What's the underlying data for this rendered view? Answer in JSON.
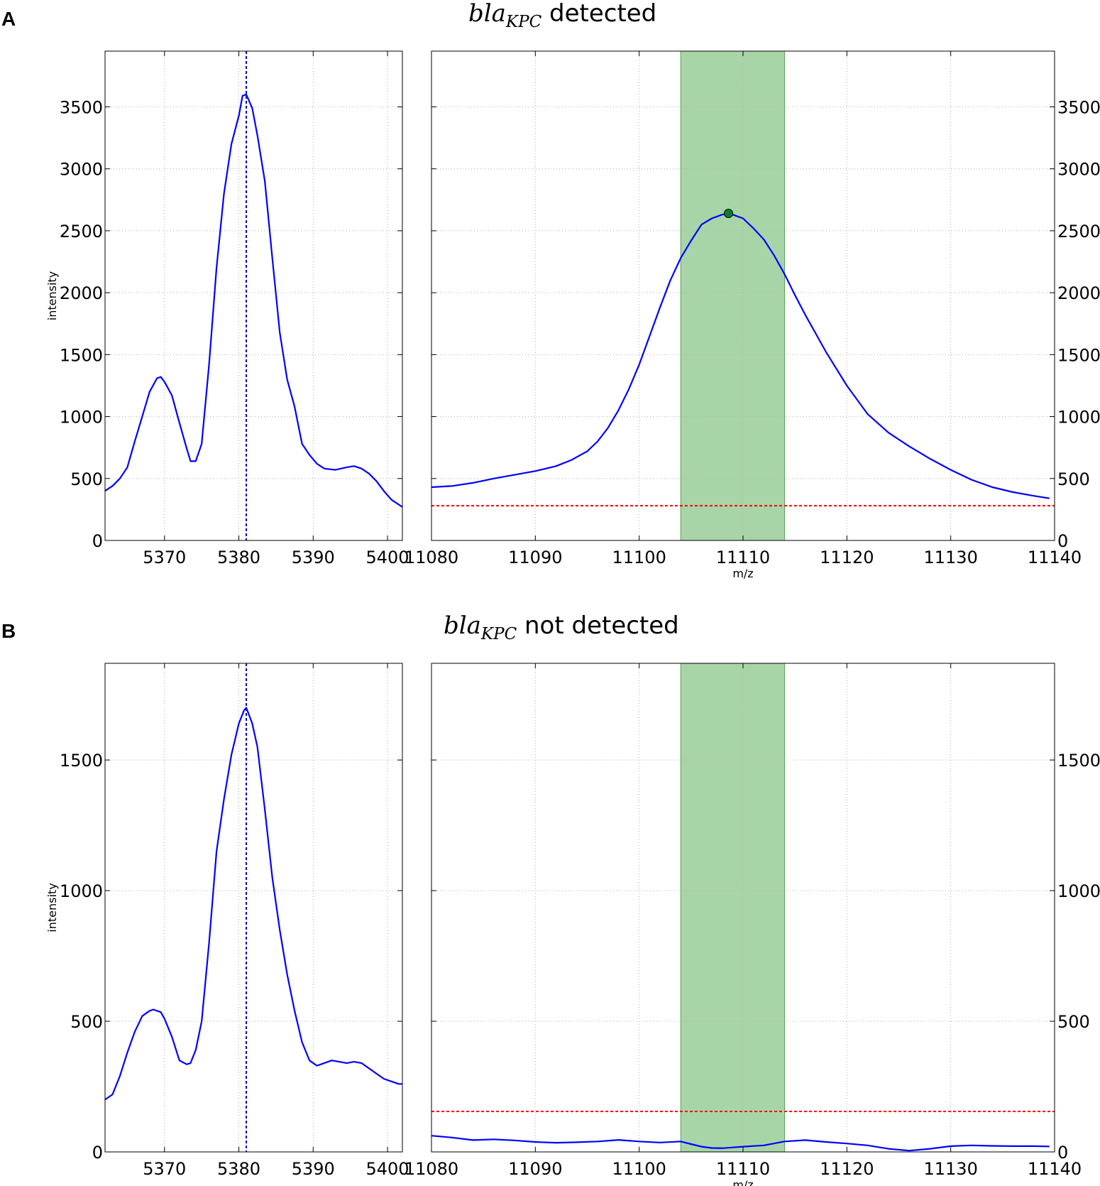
{
  "chart_data": [
    {
      "panel": "A",
      "type": "line",
      "title_gene": "bla",
      "title_subscript": "KPC",
      "title_suffix": " detected",
      "left": {
        "xlim": [
          5362,
          5402
        ],
        "ylim": [
          0,
          3950
        ],
        "xticks": [
          5370,
          5380,
          5390,
          5400
        ],
        "yticks": [
          0,
          500,
          1000,
          1500,
          2000,
          2500,
          3000,
          3500
        ],
        "ylabel": "intensity",
        "vline_x": 5381,
        "x": [
          5362,
          5363,
          5364,
          5365,
          5366,
          5367,
          5368,
          5369,
          5369.5,
          5370,
          5371,
          5372,
          5373,
          5373.5,
          5374.2,
          5375,
          5376,
          5377,
          5378,
          5379,
          5380,
          5380.5,
          5381,
          5381.8,
          5382.5,
          5383.5,
          5384.5,
          5385.5,
          5386.5,
          5387.5,
          5388.5,
          5389.5,
          5390.5,
          5391.5,
          5393,
          5394.5,
          5395.5,
          5396.5,
          5397.5,
          5398.5,
          5399.5,
          5400.5,
          5402
        ],
        "y": [
          400,
          440,
          500,
          590,
          800,
          1000,
          1200,
          1310,
          1320,
          1280,
          1170,
          950,
          740,
          640,
          640,
          780,
          1420,
          2200,
          2800,
          3200,
          3430,
          3590,
          3600,
          3490,
          3270,
          2900,
          2280,
          1680,
          1300,
          1080,
          780,
          690,
          620,
          580,
          570,
          590,
          600,
          580,
          540,
          480,
          400,
          330,
          270
        ]
      },
      "right": {
        "xlim": [
          11080,
          11140
        ],
        "ylim": [
          0,
          3950
        ],
        "xticks": [
          11080,
          11090,
          11100,
          11110,
          11120,
          11130,
          11140
        ],
        "yticks": [
          0,
          500,
          1000,
          1500,
          2000,
          2500,
          3000,
          3500
        ],
        "xlabel": "m/z",
        "band": [
          11104,
          11114
        ],
        "threshold": 280,
        "peak": {
          "x": 11108.6,
          "y": 2640
        },
        "x": [
          11080,
          11082,
          11084,
          11086,
          11088,
          11090,
          11092,
          11093.5,
          11095,
          11096,
          11097,
          11098,
          11099,
          11100,
          11101,
          11102,
          11103,
          11104,
          11105,
          11106,
          11107,
          11108,
          11108.6,
          11109,
          11110,
          11111,
          11112,
          11113,
          11114,
          11115,
          11116,
          11118,
          11120,
          11122,
          11124,
          11126,
          11128,
          11130,
          11132,
          11134,
          11136,
          11138,
          11139.5
        ],
        "y": [
          430,
          440,
          465,
          500,
          530,
          560,
          600,
          650,
          720,
          800,
          910,
          1050,
          1220,
          1420,
          1650,
          1880,
          2100,
          2280,
          2420,
          2550,
          2600,
          2630,
          2640,
          2630,
          2600,
          2520,
          2430,
          2300,
          2150,
          1980,
          1820,
          1520,
          1250,
          1020,
          870,
          760,
          660,
          570,
          490,
          430,
          390,
          360,
          340
        ]
      }
    },
    {
      "panel": "B",
      "type": "line",
      "title_gene": "bla",
      "title_subscript": "KPC",
      "title_suffix": " not detected",
      "left": {
        "xlim": [
          5362,
          5402
        ],
        "ylim": [
          0,
          1870
        ],
        "xticks": [
          5370,
          5380,
          5390,
          5400
        ],
        "yticks": [
          0,
          500,
          1000,
          1500
        ],
        "ylabel": "intensity",
        "vline_x": 5381,
        "x": [
          5362,
          5363,
          5364,
          5365,
          5366,
          5367,
          5368,
          5368.5,
          5369.5,
          5370,
          5371,
          5372,
          5373,
          5373.5,
          5374.2,
          5375,
          5376,
          5377,
          5378,
          5379,
          5380,
          5380.7,
          5381,
          5381.8,
          5382.5,
          5383.5,
          5384.5,
          5385.5,
          5386.5,
          5387.5,
          5388.5,
          5389.5,
          5390.5,
          5391.5,
          5392.5,
          5393.5,
          5394.5,
          5395.5,
          5396.5,
          5397.5,
          5398.5,
          5399.5,
          5400.5,
          5401.5,
          5402
        ],
        "y": [
          200,
          220,
          290,
          380,
          460,
          520,
          540,
          545,
          535,
          510,
          440,
          350,
          335,
          340,
          390,
          500,
          800,
          1150,
          1350,
          1520,
          1640,
          1690,
          1700,
          1640,
          1550,
          1310,
          1050,
          850,
          680,
          540,
          420,
          350,
          330,
          340,
          350,
          345,
          340,
          345,
          340,
          320,
          300,
          280,
          270,
          260,
          260
        ]
      },
      "right": {
        "xlim": [
          11080,
          11140
        ],
        "ylim": [
          0,
          1870
        ],
        "xticks": [
          11080,
          11090,
          11100,
          11110,
          11120,
          11130,
          11140
        ],
        "yticks": [
          0,
          500,
          1000,
          1500
        ],
        "xlabel": "m/z",
        "band": [
          11104,
          11114
        ],
        "threshold": 155,
        "x": [
          11080,
          11082,
          11084,
          11086,
          11088,
          11090,
          11092,
          11094,
          11096,
          11098,
          11100,
          11102,
          11104,
          11105,
          11106,
          11107,
          11108,
          11109,
          11110,
          11112,
          11114,
          11116,
          11118,
          11120,
          11122,
          11124,
          11126,
          11128,
          11130,
          11132,
          11134,
          11136,
          11138,
          11139.5
        ],
        "y": [
          62,
          55,
          45,
          48,
          44,
          38,
          35,
          37,
          40,
          46,
          40,
          36,
          40,
          30,
          20,
          15,
          14,
          17,
          20,
          25,
          40,
          45,
          38,
          32,
          25,
          12,
          5,
          12,
          22,
          25,
          23,
          22,
          22,
          21
        ]
      }
    }
  ]
}
